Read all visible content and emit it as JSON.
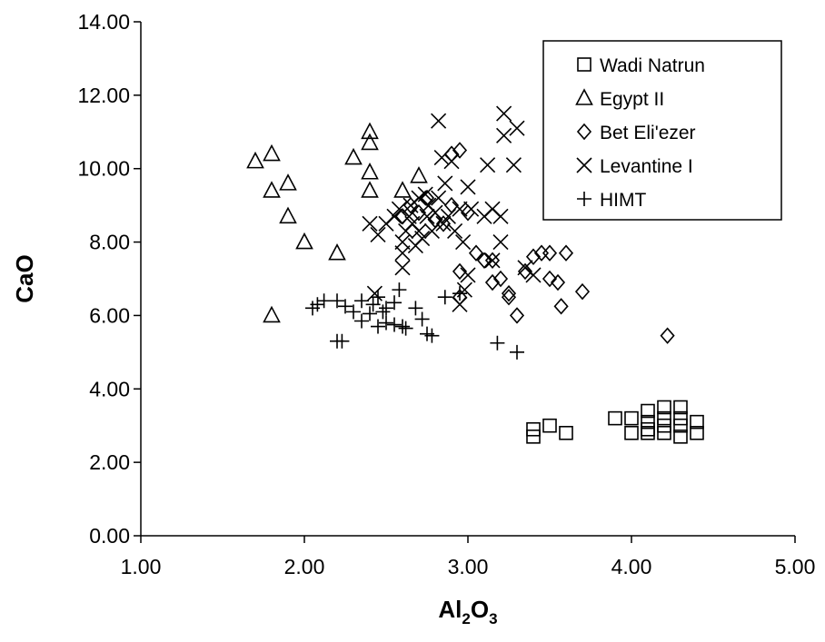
{
  "chart_data": {
    "type": "scatter",
    "xlabel": "Al",
    "xlabel_sub1": "2",
    "xlabel_mid": "O",
    "xlabel_sub2": "3",
    "ylabel": "CaO",
    "xlim": [
      1.0,
      5.0
    ],
    "ylim": [
      0.0,
      14.0
    ],
    "x_ticks": [
      "1.00",
      "2.00",
      "3.00",
      "4.00",
      "5.00"
    ],
    "y_ticks": [
      "0.00",
      "2.00",
      "4.00",
      "6.00",
      "8.00",
      "10.00",
      "12.00",
      "14.00"
    ],
    "grid": false,
    "legend_position": "top-right",
    "series": [
      {
        "name": "Wadi Natrun",
        "marker": "square",
        "points": [
          [
            3.4,
            2.7
          ],
          [
            3.4,
            2.9
          ],
          [
            3.5,
            3.0
          ],
          [
            3.6,
            2.8
          ],
          [
            3.9,
            3.2
          ],
          [
            4.0,
            3.2
          ],
          [
            4.0,
            2.8
          ],
          [
            4.1,
            3.4
          ],
          [
            4.1,
            3.1
          ],
          [
            4.1,
            2.9
          ],
          [
            4.1,
            2.8
          ],
          [
            4.2,
            3.5
          ],
          [
            4.2,
            3.2
          ],
          [
            4.2,
            3.0
          ],
          [
            4.2,
            2.8
          ],
          [
            4.3,
            3.5
          ],
          [
            4.3,
            3.2
          ],
          [
            4.3,
            3.0
          ],
          [
            4.3,
            2.7
          ],
          [
            4.4,
            3.1
          ],
          [
            4.4,
            2.8
          ]
        ]
      },
      {
        "name": "Egypt II",
        "marker": "triangle",
        "points": [
          [
            1.7,
            10.2
          ],
          [
            1.8,
            10.4
          ],
          [
            1.8,
            9.4
          ],
          [
            1.9,
            9.6
          ],
          [
            1.9,
            8.7
          ],
          [
            2.0,
            8.0
          ],
          [
            1.8,
            6.0
          ],
          [
            2.2,
            7.7
          ],
          [
            2.3,
            10.3
          ],
          [
            2.4,
            11.0
          ],
          [
            2.4,
            10.7
          ],
          [
            2.4,
            9.9
          ],
          [
            2.4,
            9.4
          ],
          [
            2.6,
            9.4
          ],
          [
            2.7,
            9.8
          ]
        ]
      },
      {
        "name": "Bet Eli'ezer",
        "marker": "diamond",
        "points": [
          [
            2.6,
            8.7
          ],
          [
            2.65,
            9.0
          ],
          [
            2.7,
            8.8
          ],
          [
            2.75,
            9.2
          ],
          [
            2.8,
            8.6
          ],
          [
            2.85,
            8.5
          ],
          [
            2.9,
            9.0
          ],
          [
            2.95,
            10.5
          ],
          [
            2.9,
            10.4
          ],
          [
            3.0,
            8.8
          ],
          [
            2.95,
            7.2
          ],
          [
            2.95,
            6.5
          ],
          [
            3.05,
            7.7
          ],
          [
            3.1,
            7.5
          ],
          [
            3.15,
            7.5
          ],
          [
            3.15,
            6.9
          ],
          [
            3.2,
            7.0
          ],
          [
            3.25,
            6.6
          ],
          [
            3.25,
            6.5
          ],
          [
            3.3,
            6.0
          ],
          [
            3.35,
            7.2
          ],
          [
            3.4,
            7.6
          ],
          [
            3.45,
            7.7
          ],
          [
            3.5,
            7.7
          ],
          [
            3.5,
            7.0
          ],
          [
            3.55,
            6.9
          ],
          [
            3.6,
            7.7
          ],
          [
            3.57,
            6.25
          ],
          [
            3.7,
            6.65
          ],
          [
            4.22,
            5.45
          ]
        ]
      },
      {
        "name": "Levantine I",
        "marker": "x",
        "points": [
          [
            2.4,
            8.5
          ],
          [
            2.45,
            8.2
          ],
          [
            2.5,
            8.5
          ],
          [
            2.55,
            8.7
          ],
          [
            2.58,
            8.9
          ],
          [
            2.6,
            8.0
          ],
          [
            2.6,
            7.7
          ],
          [
            2.62,
            8.3
          ],
          [
            2.64,
            8.7
          ],
          [
            2.65,
            9.0
          ],
          [
            2.66,
            8.5
          ],
          [
            2.68,
            7.9
          ],
          [
            2.7,
            9.2
          ],
          [
            2.72,
            8.1
          ],
          [
            2.74,
            9.3
          ],
          [
            2.75,
            8.7
          ],
          [
            2.76,
            9.0
          ],
          [
            2.78,
            8.3
          ],
          [
            2.8,
            8.8
          ],
          [
            2.82,
            9.2
          ],
          [
            2.84,
            10.3
          ],
          [
            2.85,
            8.5
          ],
          [
            2.86,
            9.6
          ],
          [
            2.88,
            8.7
          ],
          [
            2.9,
            10.2
          ],
          [
            2.92,
            8.3
          ],
          [
            2.95,
            8.9
          ],
          [
            2.97,
            8.0
          ],
          [
            3.0,
            9.5
          ],
          [
            3.02,
            8.9
          ],
          [
            2.82,
            11.3
          ],
          [
            3.22,
            11.5
          ],
          [
            3.22,
            10.9
          ],
          [
            3.3,
            11.1
          ],
          [
            3.28,
            10.1
          ],
          [
            3.12,
            10.1
          ],
          [
            3.15,
            8.9
          ],
          [
            3.2,
            8.7
          ],
          [
            3.1,
            8.7
          ],
          [
            2.6,
            7.3
          ],
          [
            2.43,
            6.6
          ],
          [
            2.95,
            6.3
          ],
          [
            3.0,
            7.1
          ],
          [
            2.98,
            6.7
          ],
          [
            3.2,
            8.0
          ],
          [
            3.15,
            7.5
          ],
          [
            3.35,
            7.3
          ],
          [
            3.4,
            7.1
          ],
          [
            2.7,
            8.3
          ]
        ]
      },
      {
        "name": "HIMT",
        "marker": "plus",
        "points": [
          [
            2.05,
            6.2
          ],
          [
            2.08,
            6.3
          ],
          [
            2.12,
            6.4
          ],
          [
            2.2,
            6.4
          ],
          [
            2.25,
            6.25
          ],
          [
            2.3,
            6.1
          ],
          [
            2.35,
            6.4
          ],
          [
            2.42,
            6.3
          ],
          [
            2.45,
            6.5
          ],
          [
            2.5,
            6.2
          ],
          [
            2.55,
            6.35
          ],
          [
            2.58,
            6.7
          ],
          [
            2.45,
            5.7
          ],
          [
            2.5,
            5.8
          ],
          [
            2.55,
            5.75
          ],
          [
            2.6,
            5.7
          ],
          [
            2.62,
            5.65
          ],
          [
            2.35,
            5.85
          ],
          [
            2.2,
            5.3
          ],
          [
            2.23,
            5.3
          ],
          [
            2.68,
            6.2
          ],
          [
            2.72,
            5.9
          ],
          [
            2.75,
            5.5
          ],
          [
            2.78,
            5.45
          ],
          [
            2.86,
            6.5
          ],
          [
            2.95,
            6.6
          ],
          [
            3.18,
            5.25
          ],
          [
            3.3,
            5.0
          ],
          [
            2.48,
            6.1
          ],
          [
            2.4,
            6.05
          ]
        ]
      }
    ]
  }
}
